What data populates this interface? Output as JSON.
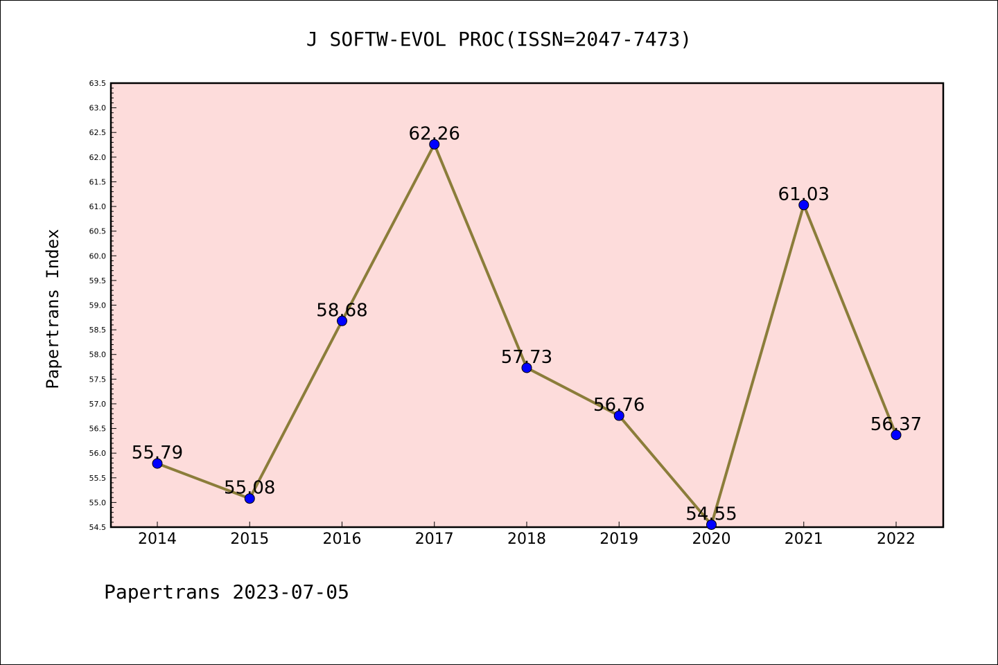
{
  "chart_data": {
    "type": "line",
    "title": "J SOFTW-EVOL PROC(ISSN=2047-7473)",
    "ylabel": "Papertrans Index",
    "xlabel": "",
    "categories": [
      "2014",
      "2015",
      "2016",
      "2017",
      "2018",
      "2019",
      "2020",
      "2021",
      "2022"
    ],
    "values": [
      55.79,
      55.08,
      58.68,
      62.26,
      57.73,
      56.76,
      54.55,
      61.03,
      56.37
    ],
    "data_labels": [
      "55.79",
      "55.08",
      "58.68",
      "62.26",
      "57.73",
      "56.76",
      "54.55",
      "61.03",
      "56.37"
    ],
    "ylim": [
      54.5,
      63.5
    ],
    "ytick_labels": [
      "54.5",
      "55.0",
      "55.5",
      "56.0",
      "56.5",
      "57.0",
      "57.5",
      "58.0",
      "58.5",
      "59.0",
      "59.5",
      "60.0",
      "60.5",
      "61.0",
      "61.5",
      "62.0",
      "62.5",
      "63.0",
      "63.5"
    ],
    "grid": false,
    "colors": {
      "plot_background": "#fddcdb",
      "line": "#8b7d3a",
      "marker": "#0000ff",
      "axis": "#000000"
    }
  },
  "footer": "Papertrans 2023-07-05"
}
